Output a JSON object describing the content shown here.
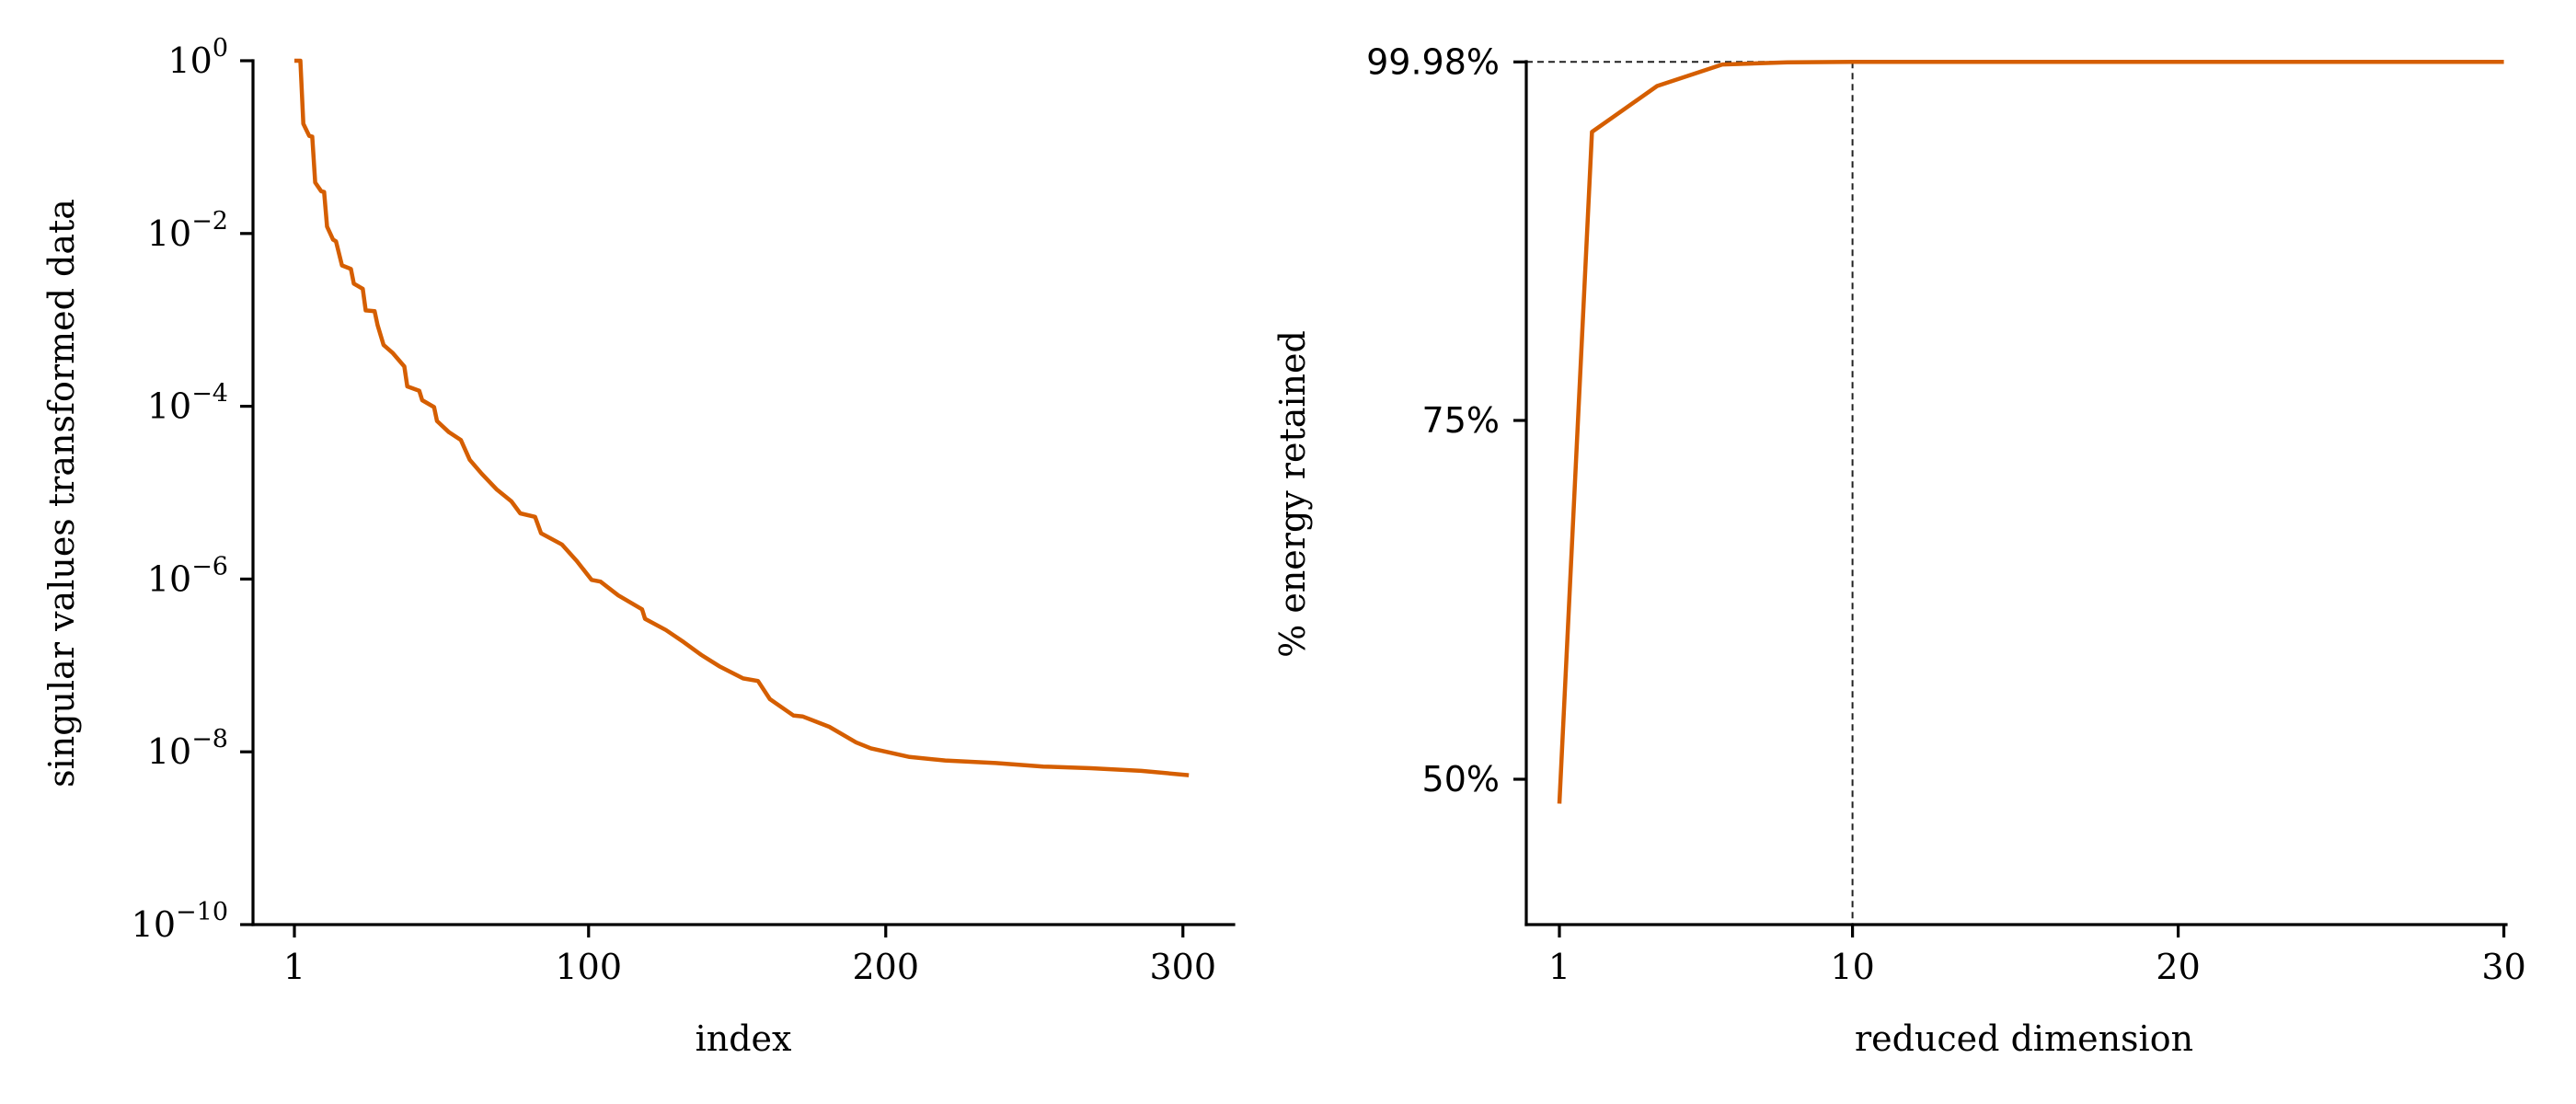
{
  "chart_data": [
    {
      "type": "line",
      "title": "",
      "xlabel": "index",
      "ylabel": "singular values transformed data",
      "yscale": "log",
      "ylim": [
        1e-10,
        1
      ],
      "xticks": [
        1,
        100,
        200,
        300
      ],
      "yticks": [
        {
          "value": 0,
          "base": "10",
          "exp": "0"
        },
        {
          "value": -2,
          "base": "10",
          "exp": "−2"
        },
        {
          "value": -4,
          "base": "10",
          "exp": "−4"
        },
        {
          "value": -6,
          "base": "10",
          "exp": "−6"
        },
        {
          "value": -8,
          "base": "10",
          "exp": "−8"
        },
        {
          "value": -10,
          "base": "10",
          "exp": "−10"
        }
      ],
      "grid": false,
      "series": [
        {
          "name": "singular values",
          "color": "#D55E00",
          "x": [
            1,
            3,
            4,
            6,
            7,
            8,
            10,
            11,
            12,
            14,
            15,
            17,
            20,
            21,
            24,
            25,
            28,
            29,
            31,
            34,
            38,
            39,
            43,
            44,
            48,
            49,
            53,
            57,
            60,
            64,
            69,
            74,
            77,
            82,
            84,
            91,
            96,
            101,
            104,
            110,
            118,
            119,
            126,
            132,
            138,
            144,
            152,
            157,
            161,
            169,
            172,
            181,
            190,
            195,
            208,
            220,
            237,
            253,
            269,
            286,
            302
          ],
          "log10": [
            0.0,
            0.0,
            -0.73,
            -0.87,
            -0.88,
            -1.41,
            -1.51,
            -1.52,
            -1.92,
            -2.07,
            -2.09,
            -2.37,
            -2.41,
            -2.58,
            -2.64,
            -2.89,
            -2.9,
            -3.06,
            -3.29,
            -3.38,
            -3.54,
            -3.77,
            -3.82,
            -3.93,
            -4.01,
            -4.17,
            -4.3,
            -4.39,
            -4.62,
            -4.78,
            -4.96,
            -5.1,
            -5.24,
            -5.28,
            -5.47,
            -5.6,
            -5.79,
            -6.01,
            -6.03,
            -6.19,
            -6.35,
            -6.46,
            -6.59,
            -6.73,
            -6.88,
            -7.01,
            -7.15,
            -7.18,
            -7.39,
            -7.58,
            -7.59,
            -7.71,
            -7.89,
            -7.96,
            -8.06,
            -8.1,
            -8.13,
            -8.17,
            -8.19,
            -8.22,
            -8.27
          ]
        }
      ]
    },
    {
      "type": "line",
      "title": "",
      "xlabel": "reduced dimension",
      "ylabel": "% energy retained",
      "ylim": [
        40,
        99.98
      ],
      "xlim": [
        1,
        30
      ],
      "xticks": [
        1,
        10,
        20,
        30
      ],
      "yticks": [
        {
          "value": 50,
          "label": "50%"
        },
        {
          "value": 75,
          "label": "75%"
        },
        {
          "value": 99.98,
          "label": "99.98%"
        }
      ],
      "grid": false,
      "reference_lines": {
        "horizontal_y": 99.98,
        "vertical_x": 10,
        "style": "dashed"
      },
      "series": [
        {
          "name": "energy retained",
          "color": "#D55E00",
          "x": [
            1,
            2,
            4,
            6,
            8,
            10,
            12,
            14,
            16,
            18,
            20,
            22,
            24,
            26,
            28,
            30
          ],
          "y": [
            48.3,
            95.1,
            98.3,
            99.8,
            99.95,
            99.98,
            99.98,
            99.98,
            99.98,
            99.98,
            99.98,
            99.98,
            99.98,
            99.98,
            99.98,
            99.98
          ]
        }
      ]
    }
  ],
  "labels": {
    "left_xlabel": "index",
    "left_ylabel": "singular values transformed data",
    "right_xlabel": "reduced dimension",
    "right_ylabel": "% energy retained"
  }
}
